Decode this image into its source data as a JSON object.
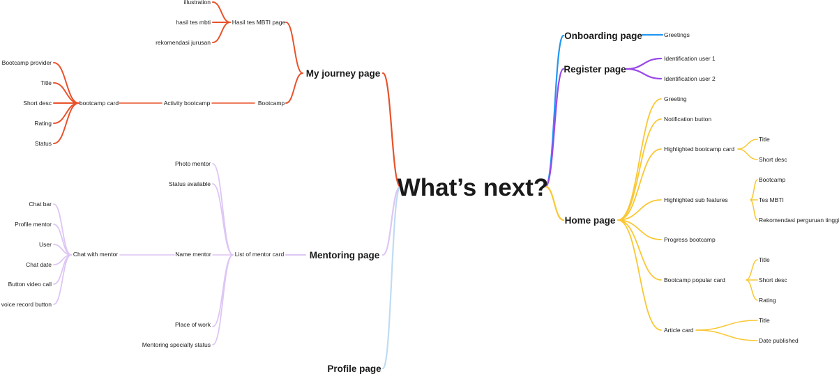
{
  "root": {
    "label": "What’s next?"
  },
  "colors": {
    "journey": "#e8522a",
    "mentoring": "#ddc6f4",
    "profile": "#bfdcf3",
    "onboarding": "#2196f3",
    "register": "#9a49e8",
    "home": "#f9c733"
  },
  "journey": {
    "label": "My journey page",
    "mbti": {
      "label": "Hasil tes MBTI page",
      "children": [
        "illustration",
        "hasil tes mbti",
        "rekomendasi jurusan"
      ]
    },
    "bootcamp": {
      "label": "Bootcamp",
      "activity": "Activity bootcamp",
      "card": "bootcamp card",
      "children": [
        "Bootcamp provider",
        "Title",
        "Short desc",
        "Rating",
        "Status"
      ]
    }
  },
  "mentoring": {
    "label": "Mentoring page",
    "list": {
      "label": "List of mentor card",
      "children": [
        "Photo mentor",
        "Status available",
        "Name mentor",
        "Place of work",
        "Mentoring specialty status"
      ]
    },
    "chat": {
      "label": "Chat with mentor",
      "children": [
        "Chat bar",
        "Profile mentor",
        "User",
        "Chat date",
        "Button video call",
        "voice record button"
      ]
    }
  },
  "profile": {
    "label": "Profile page"
  },
  "onboarding": {
    "label": "Onboarding page",
    "children": [
      "Greetings"
    ]
  },
  "register": {
    "label": "Register page",
    "children": [
      "Identification user 1",
      "Identification user 2"
    ]
  },
  "home": {
    "label": "Home page",
    "greeting": "Greeting",
    "notification": "Notification button",
    "highlighted_card": {
      "label": "Highlighted bootcamp card",
      "children": [
        "Title",
        "Short desc"
      ]
    },
    "sub_features": {
      "label": "Highlighted sub features",
      "children": [
        "Bootcamp",
        "Tes MBTI",
        "Rekomendasi perguruan tinggi"
      ]
    },
    "progress": "Progress bootcamp",
    "popular_card": {
      "label": "Bootcamp popular card",
      "children": [
        "Title",
        "Short desc",
        "Rating"
      ]
    },
    "article_card": {
      "label": "Article card",
      "children": [
        "Title",
        "Date published"
      ]
    }
  }
}
